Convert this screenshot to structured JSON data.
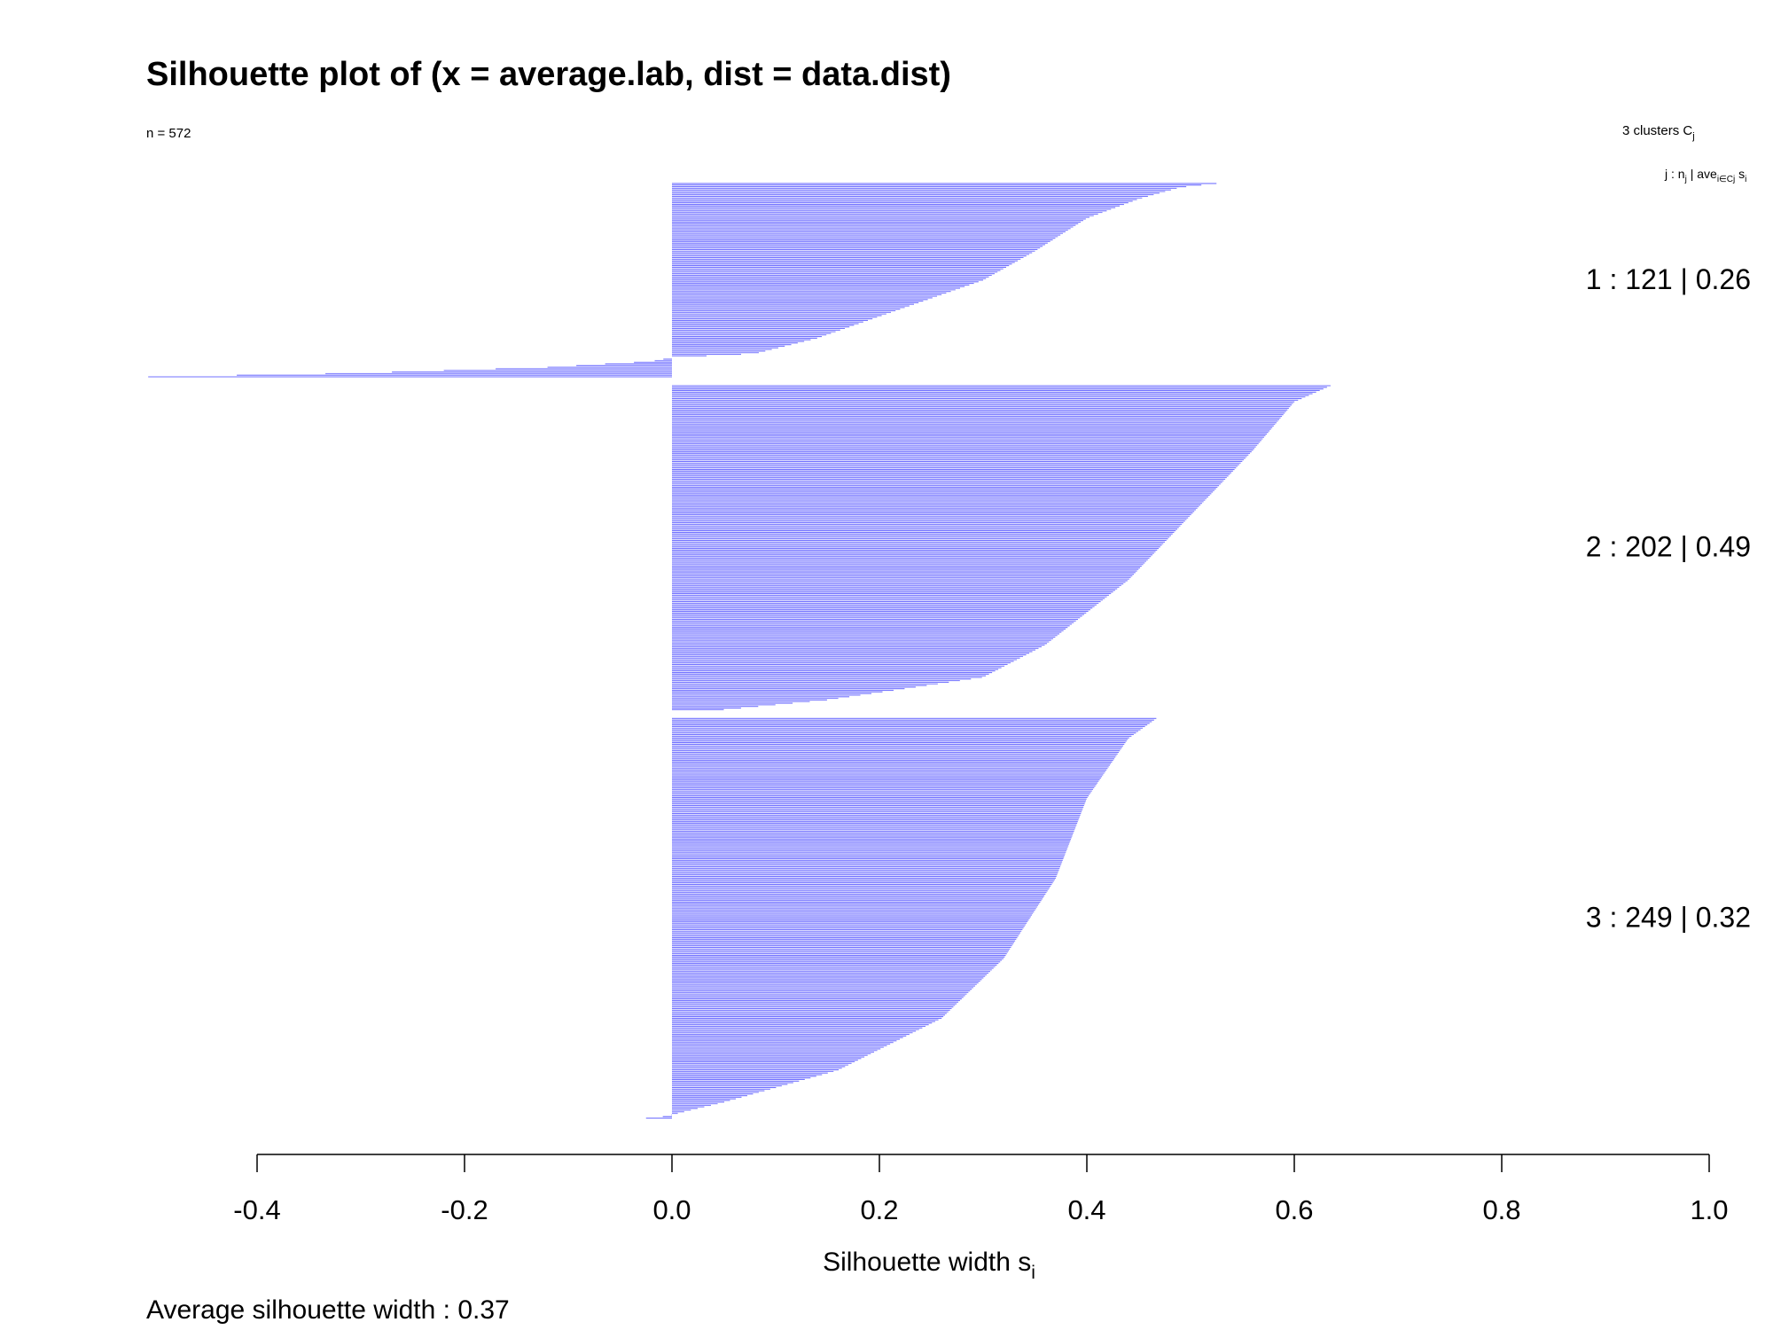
{
  "chart_data": {
    "type": "bar",
    "orientation": "horizontal",
    "title": "Silhouette plot of (x = average.lab, dist = data.dist)",
    "n_label": "n = 572",
    "clusters_label": "3  clusters  C",
    "clusters_label_sub": "j",
    "header": {
      "j": "j :  n",
      "j_sub": "j",
      "ave": " | ave",
      "ave_sub": "i∈Cj",
      "si": "  s",
      "si_sub": "i"
    },
    "xlabel": "Silhouette width s",
    "xlabel_sub": "i",
    "xlim": [
      -0.4,
      1.0
    ],
    "xticks": [
      -0.4,
      -0.2,
      0.0,
      0.2,
      0.4,
      0.6,
      0.8,
      1.0
    ],
    "xtick_labels": [
      "-0.4",
      "-0.2",
      "0.0",
      "0.2",
      "0.4",
      "0.6",
      "0.8",
      "1.0"
    ],
    "bar_color": "#0000ff",
    "footer": "Average silhouette width :  0.37",
    "clusters": [
      {
        "id": 1,
        "n": 121,
        "avg": 0.26,
        "label": "1 :   121  |  0.26",
        "profile": [
          [
            0,
            0.525
          ],
          [
            0.02,
            0.49
          ],
          [
            0.08,
            0.45
          ],
          [
            0.18,
            0.4
          ],
          [
            0.35,
            0.35
          ],
          [
            0.5,
            0.3
          ],
          [
            0.65,
            0.22
          ],
          [
            0.8,
            0.14
          ],
          [
            0.88,
            0.08
          ],
          [
            0.9,
            0.0
          ],
          [
            0.92,
            -0.02
          ],
          [
            0.95,
            -0.12
          ],
          [
            0.98,
            -0.3
          ],
          [
            1,
            -0.505
          ]
        ]
      },
      {
        "id": 2,
        "n": 202,
        "avg": 0.49,
        "label": "2 :   202  |  0.49",
        "profile": [
          [
            0,
            0.635
          ],
          [
            0.05,
            0.6
          ],
          [
            0.2,
            0.56
          ],
          [
            0.4,
            0.5
          ],
          [
            0.6,
            0.44
          ],
          [
            0.8,
            0.36
          ],
          [
            0.9,
            0.3
          ],
          [
            0.97,
            0.15
          ],
          [
            1,
            0.05
          ]
        ]
      },
      {
        "id": 3,
        "n": 249,
        "avg": 0.32,
        "label": "3 :   249  |  0.32",
        "profile": [
          [
            0,
            0.467
          ],
          [
            0.05,
            0.44
          ],
          [
            0.2,
            0.4
          ],
          [
            0.4,
            0.37
          ],
          [
            0.6,
            0.32
          ],
          [
            0.75,
            0.26
          ],
          [
            0.88,
            0.16
          ],
          [
            0.96,
            0.05
          ],
          [
            0.985,
            0.01
          ],
          [
            0.995,
            -0.005
          ],
          [
            1,
            -0.025
          ]
        ]
      }
    ]
  }
}
